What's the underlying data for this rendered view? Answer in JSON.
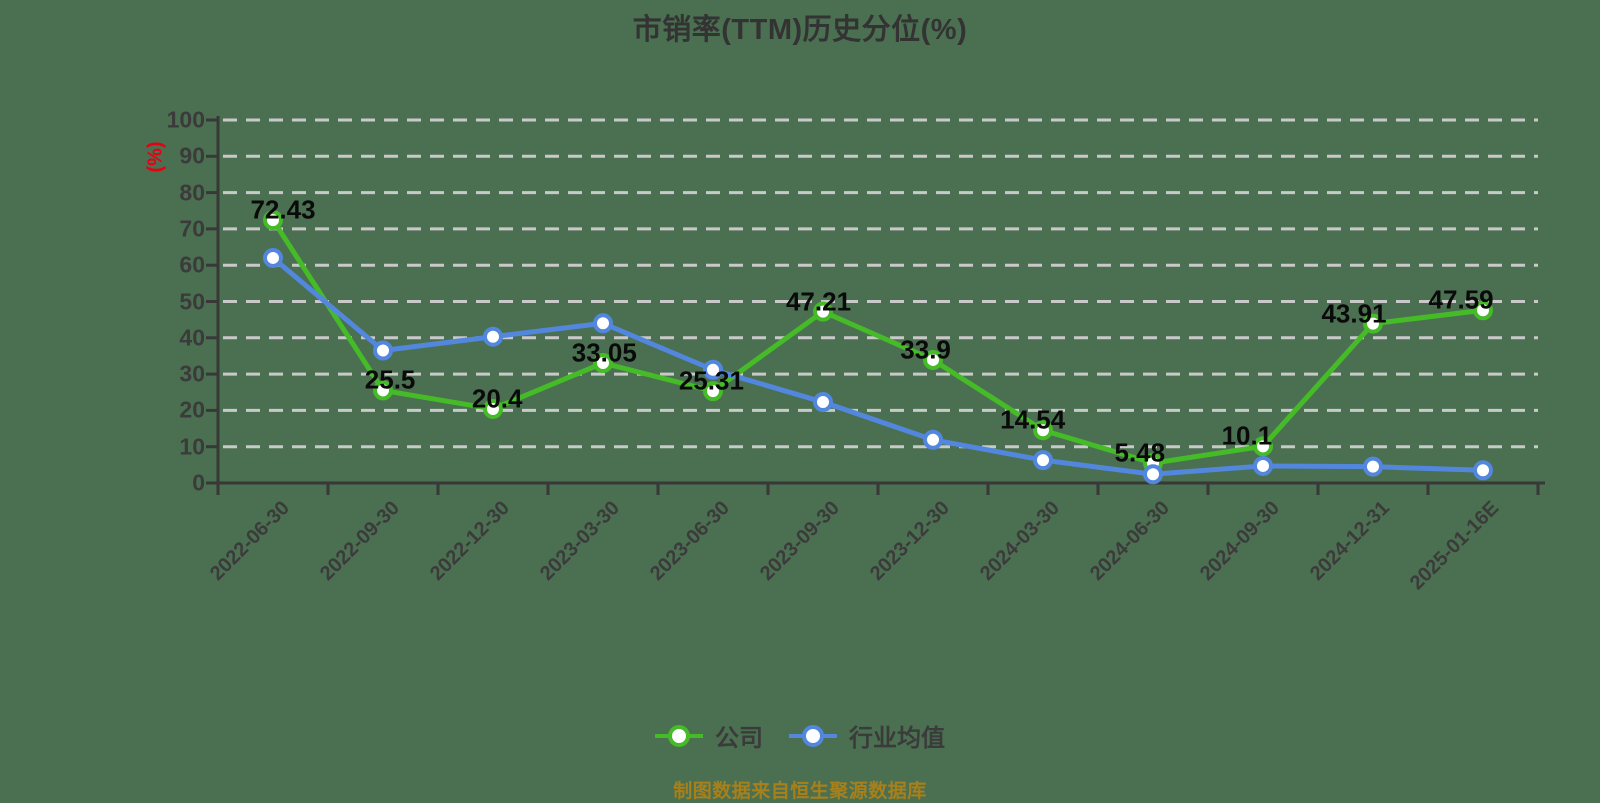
{
  "title": "市销率(TTM)历史分位(%)",
  "y_axis_name": "(%)",
  "footer": "制图数据来自恒生聚源数据库",
  "legend": [
    {
      "label": "公司",
      "color": "#46bb28"
    },
    {
      "label": "行业均值",
      "color": "#5287dd"
    }
  ],
  "chart_data": {
    "type": "line",
    "title": "市销率(TTM)历史分位(%)",
    "ylabel": "(%)",
    "ylim": [
      0,
      100
    ],
    "y_ticks": [
      0,
      10,
      20,
      30,
      40,
      50,
      60,
      70,
      80,
      90,
      100
    ],
    "grid": "horizontal dashed",
    "legend_position": "bottom",
    "categories": [
      "2022-06-30",
      "2022-09-30",
      "2022-12-30",
      "2023-03-30",
      "2023-06-30",
      "2023-09-30",
      "2023-12-30",
      "2024-03-30",
      "2024-06-30",
      "2024-09-30",
      "2024-12-31",
      "2025-01-16E"
    ],
    "series": [
      {
        "name": "公司",
        "color": "#46bb28",
        "labeled": true,
        "values": [
          72.43,
          25.5,
          20.4,
          33.05,
          25.31,
          47.21,
          33.9,
          14.54,
          5.48,
          10.1,
          43.91,
          47.59
        ]
      },
      {
        "name": "行业均值",
        "color": "#5287dd",
        "labeled": false,
        "values": [
          62,
          36.5,
          40.3,
          44,
          31.2,
          22.3,
          11.9,
          6.3,
          2.4,
          4.7,
          4.5,
          3.5
        ]
      }
    ]
  },
  "colors": {
    "background": "#4a7051",
    "grid": "#c9c9c9",
    "axis": "#383838",
    "title_text": "#333333",
    "tick_text": "#3b3b3b",
    "data_label": "#0a0a0a",
    "footer_gold": "#a8801b",
    "percent_red": "#e60012"
  }
}
